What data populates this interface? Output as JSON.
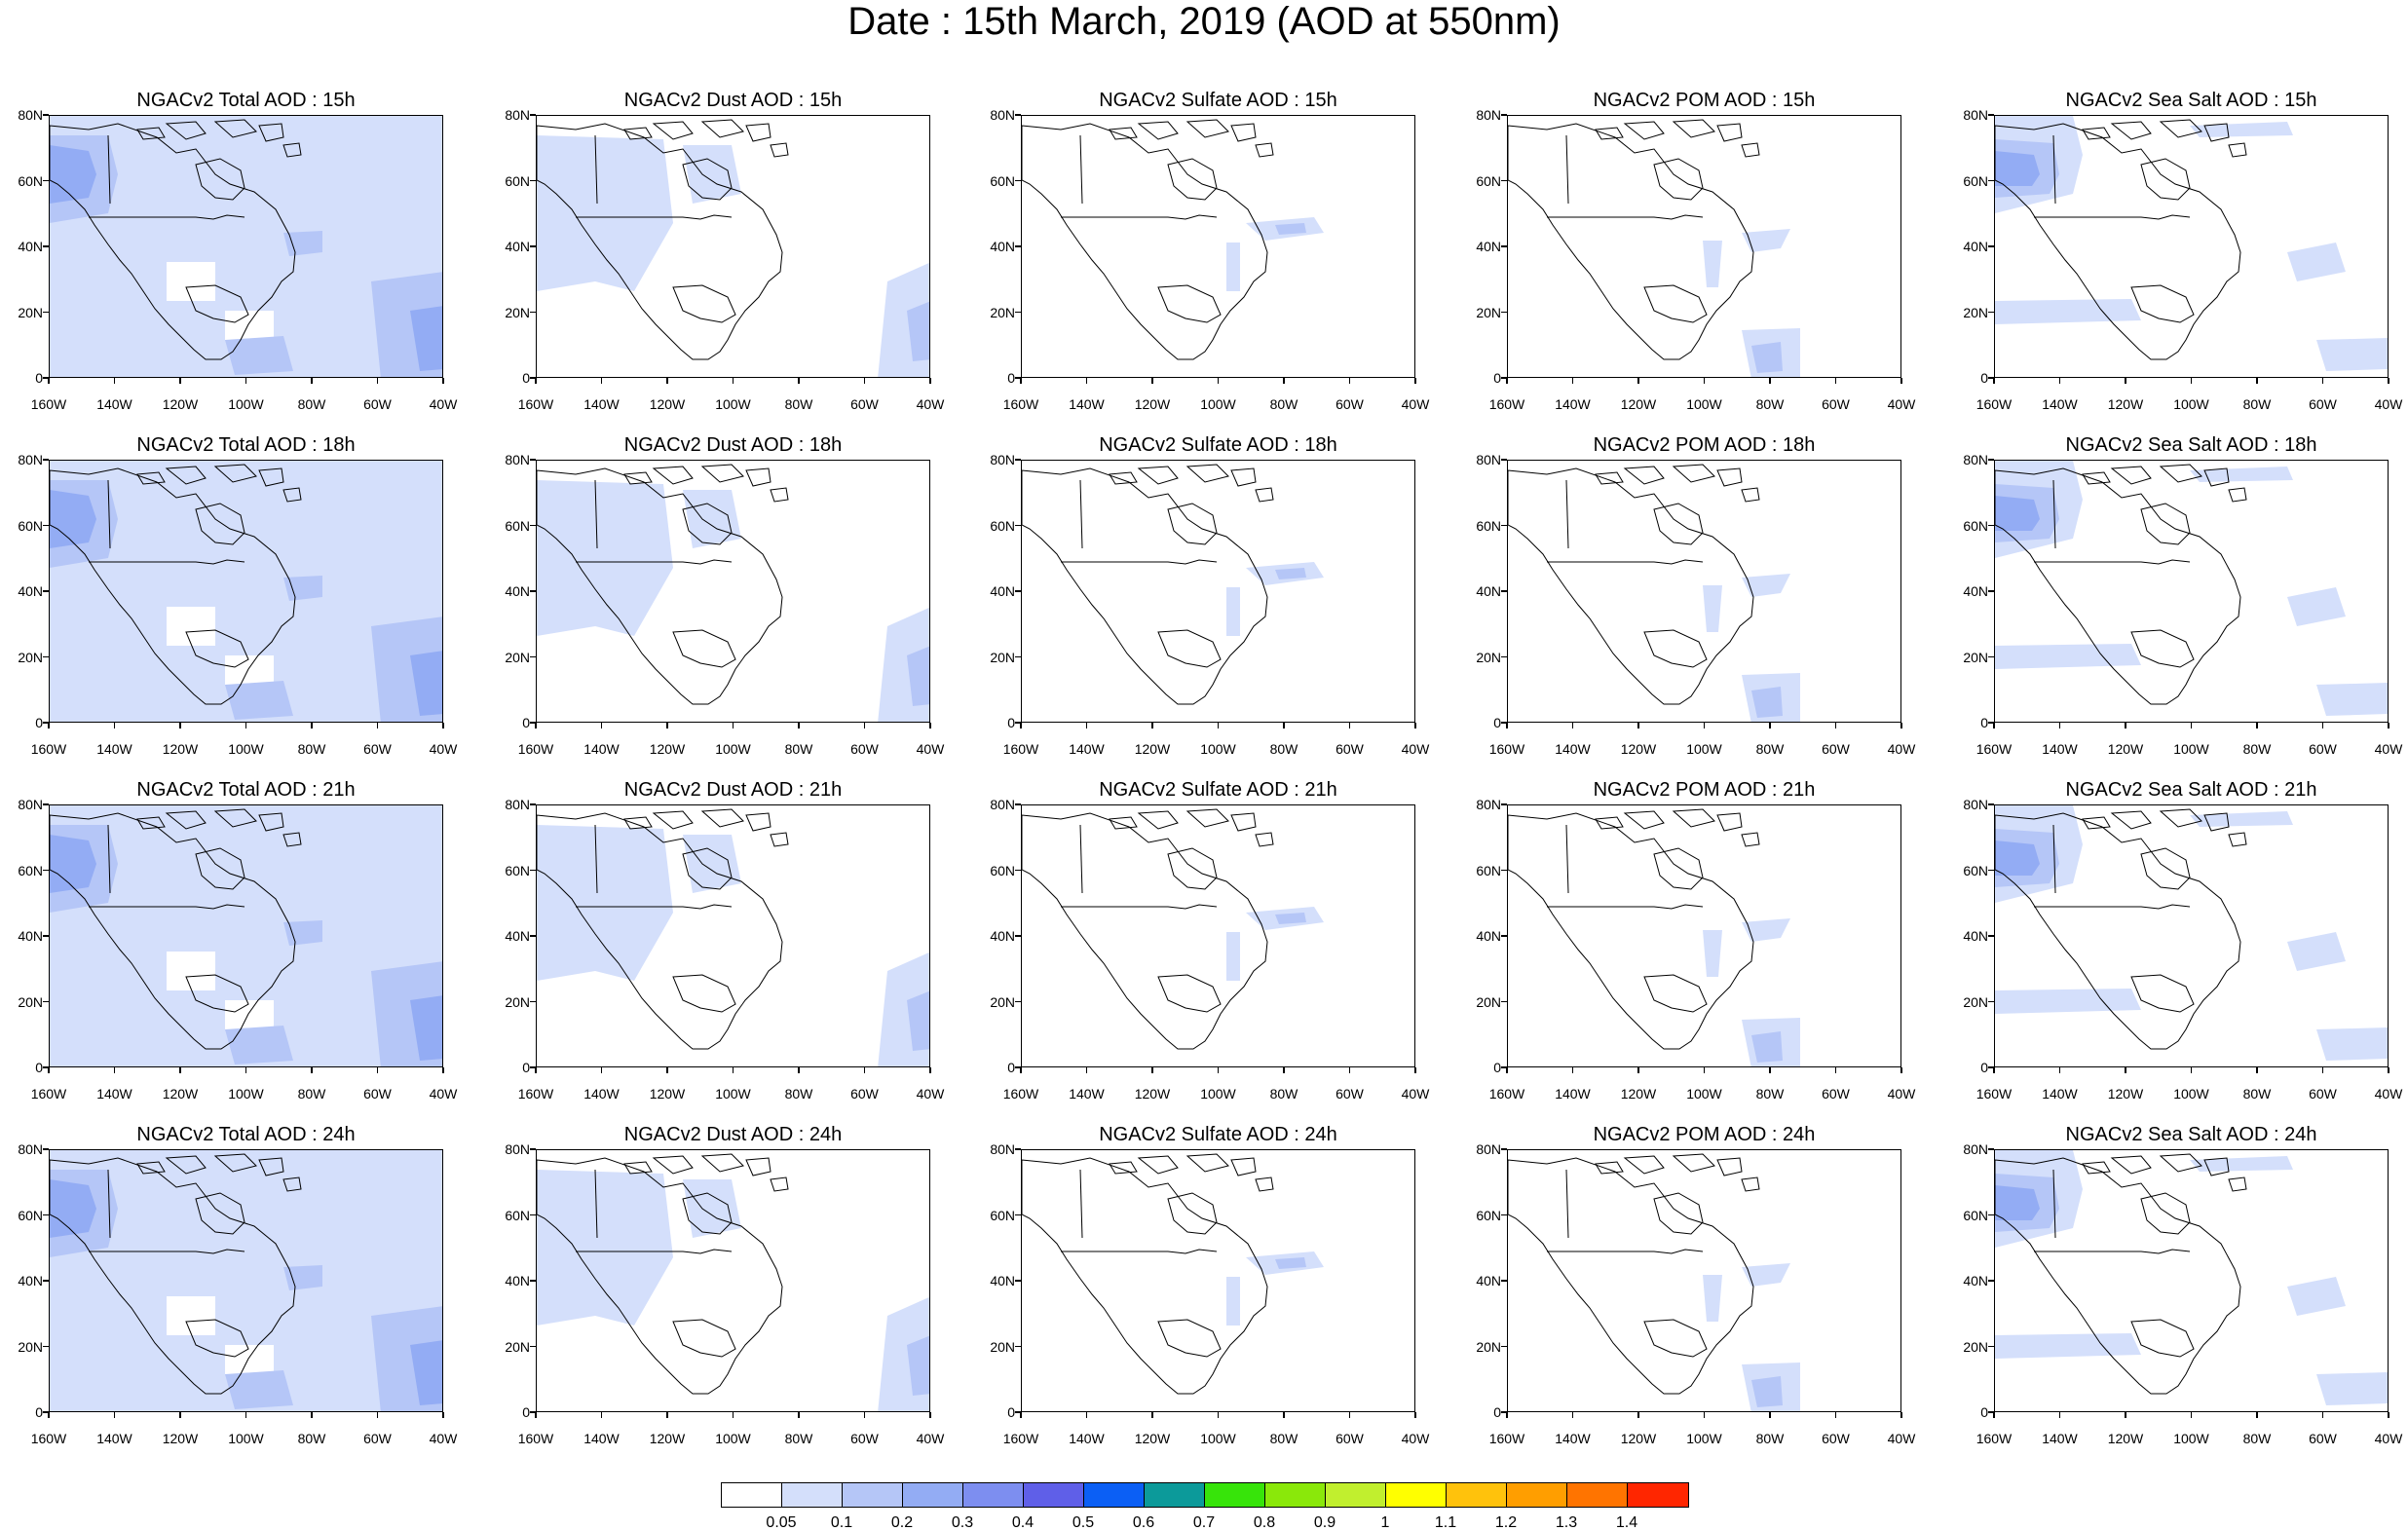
{
  "title": "Date : 15th March, 2019 (AOD at 550nm)",
  "panels": [
    {
      "title": "NGACv2 Total AOD : 15h",
      "kind": "total"
    },
    {
      "title": "NGACv2 Dust AOD : 15h",
      "kind": "dust"
    },
    {
      "title": "NGACv2 Sulfate AOD : 15h",
      "kind": "sulfate"
    },
    {
      "title": "NGACv2 POM AOD : 15h",
      "kind": "pom"
    },
    {
      "title": "NGACv2 Sea Salt AOD : 15h",
      "kind": "seasalt"
    },
    {
      "title": "NGACv2 Total AOD : 18h",
      "kind": "total"
    },
    {
      "title": "NGACv2 Dust AOD : 18h",
      "kind": "dust"
    },
    {
      "title": "NGACv2 Sulfate AOD : 18h",
      "kind": "sulfate"
    },
    {
      "title": "NGACv2 POM AOD : 18h",
      "kind": "pom"
    },
    {
      "title": "NGACv2 Sea Salt AOD : 18h",
      "kind": "seasalt"
    },
    {
      "title": "NGACv2 Total AOD : 21h",
      "kind": "total"
    },
    {
      "title": "NGACv2 Dust AOD : 21h",
      "kind": "dust"
    },
    {
      "title": "NGACv2 Sulfate AOD : 21h",
      "kind": "sulfate"
    },
    {
      "title": "NGACv2 POM AOD : 21h",
      "kind": "pom"
    },
    {
      "title": "NGACv2 Sea Salt AOD : 21h",
      "kind": "seasalt"
    },
    {
      "title": "NGACv2 Total AOD : 24h",
      "kind": "total"
    },
    {
      "title": "NGACv2 Dust AOD : 24h",
      "kind": "dust"
    },
    {
      "title": "NGACv2 Sulfate AOD : 24h",
      "kind": "sulfate"
    },
    {
      "title": "NGACv2 POM AOD : 24h",
      "kind": "pom"
    },
    {
      "title": "NGACv2 Sea Salt  AOD : 24h",
      "kind": "seasalt"
    }
  ],
  "lat_ticks": [
    "80N",
    "60N",
    "40N",
    "20N",
    "0"
  ],
  "lon_ticks": [
    "160W",
    "140W",
    "120W",
    "100W",
    "80W",
    "60W",
    "40W"
  ],
  "legend": {
    "colors": [
      "#ffffff",
      "#d4dffb",
      "#b5c6f7",
      "#93acf4",
      "#7d8ef0",
      "#5f5fe8",
      "#0b5ff5",
      "#0c9a9a",
      "#37e40a",
      "#8ae80a",
      "#c1ef2e",
      "#ffff00",
      "#ffc20c",
      "#ff9e00",
      "#ff7400",
      "#ff2600"
    ],
    "labels": [
      "0.05",
      "0.1",
      "0.2",
      "0.3",
      "0.4",
      "0.5",
      "0.6",
      "0.7",
      "0.8",
      "0.9",
      "1",
      "1.1",
      "1.2",
      "1.3",
      "1.4"
    ]
  }
}
